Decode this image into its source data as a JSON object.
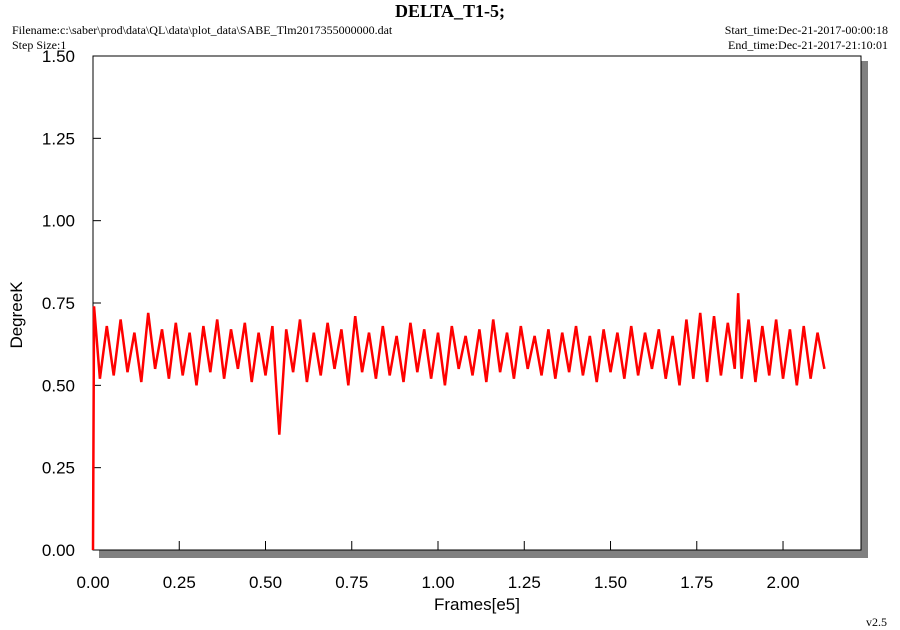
{
  "chart_data": {
    "type": "line",
    "title": "DELTA_T1-5;",
    "filename": "Filename:c:\\saber\\prod\\data\\QL\\data\\plot_data\\SABE_Tlm2017355000000.dat",
    "step_size": "Step Size:1",
    "start_time": "Start_time:Dec-21-2017-00:00:18",
    "end_time": "End_time:Dec-21-2017-21:10:01",
    "version": "v2.5",
    "x_label": "Frames[e5]",
    "y_label": "DegreeK",
    "xlim": [
      0,
      2.226
    ],
    "ylim": [
      0,
      1.5
    ],
    "xticks": [
      {
        "value": 0,
        "label": "0.00"
      },
      {
        "value": 0.25,
        "label": "0.25"
      },
      {
        "value": 0.5,
        "label": "0.50"
      },
      {
        "value": 0.75,
        "label": "0.75"
      },
      {
        "value": 1,
        "label": "1.00"
      },
      {
        "value": 1.25,
        "label": "1.25"
      },
      {
        "value": 1.5,
        "label": "1.50"
      },
      {
        "value": 1.75,
        "label": "1.75"
      },
      {
        "value": 2,
        "label": "2.00"
      }
    ],
    "yticks": [
      {
        "value": 0,
        "label": "0.00"
      },
      {
        "value": 0.25,
        "label": "0.25"
      },
      {
        "value": 0.5,
        "label": "0.50"
      },
      {
        "value": 0.75,
        "label": "0.75"
      },
      {
        "value": 1,
        "label": "1.00"
      },
      {
        "value": 1.25,
        "label": "1.25"
      },
      {
        "value": 1.5,
        "label": "1.50"
      }
    ],
    "x": [
      0,
      0.003,
      0.02,
      0.04,
      0.06,
      0.08,
      0.1,
      0.12,
      0.14,
      0.16,
      0.18,
      0.2,
      0.22,
      0.24,
      0.26,
      0.28,
      0.3,
      0.32,
      0.34,
      0.36,
      0.38,
      0.4,
      0.42,
      0.44,
      0.46,
      0.48,
      0.5,
      0.52,
      0.54,
      0.56,
      0.58,
      0.6,
      0.62,
      0.64,
      0.66,
      0.68,
      0.7,
      0.72,
      0.74,
      0.76,
      0.78,
      0.8,
      0.82,
      0.84,
      0.86,
      0.88,
      0.9,
      0.92,
      0.94,
      0.96,
      0.98,
      1.0,
      1.02,
      1.04,
      1.06,
      1.08,
      1.1,
      1.12,
      1.14,
      1.16,
      1.18,
      1.2,
      1.22,
      1.24,
      1.26,
      1.28,
      1.3,
      1.32,
      1.34,
      1.36,
      1.38,
      1.4,
      1.42,
      1.44,
      1.46,
      1.48,
      1.5,
      1.52,
      1.54,
      1.56,
      1.58,
      1.6,
      1.62,
      1.64,
      1.66,
      1.68,
      1.7,
      1.72,
      1.74,
      1.76,
      1.78,
      1.8,
      1.82,
      1.84,
      1.86,
      1.87,
      1.88,
      1.9,
      1.92,
      1.94,
      1.96,
      1.98,
      2.0,
      2.02,
      2.04,
      2.06,
      2.08,
      2.1,
      2.12
    ],
    "series": [
      {
        "color": "#ff0000",
        "values": [
          0.0,
          0.74,
          0.52,
          0.68,
          0.53,
          0.7,
          0.54,
          0.66,
          0.51,
          0.72,
          0.55,
          0.67,
          0.52,
          0.69,
          0.53,
          0.66,
          0.5,
          0.68,
          0.54,
          0.7,
          0.52,
          0.67,
          0.55,
          0.69,
          0.51,
          0.66,
          0.53,
          0.68,
          0.35,
          0.67,
          0.54,
          0.7,
          0.51,
          0.66,
          0.53,
          0.69,
          0.55,
          0.67,
          0.5,
          0.71,
          0.54,
          0.66,
          0.52,
          0.68,
          0.53,
          0.65,
          0.51,
          0.69,
          0.54,
          0.67,
          0.52,
          0.66,
          0.5,
          0.68,
          0.55,
          0.65,
          0.53,
          0.67,
          0.51,
          0.7,
          0.54,
          0.66,
          0.52,
          0.68,
          0.55,
          0.65,
          0.53,
          0.67,
          0.52,
          0.66,
          0.54,
          0.68,
          0.53,
          0.65,
          0.51,
          0.67,
          0.54,
          0.66,
          0.52,
          0.68,
          0.53,
          0.66,
          0.55,
          0.67,
          0.52,
          0.65,
          0.5,
          0.7,
          0.52,
          0.72,
          0.51,
          0.71,
          0.53,
          0.69,
          0.55,
          0.78,
          0.52,
          0.7,
          0.51,
          0.68,
          0.53,
          0.7,
          0.52,
          0.67,
          0.5,
          0.68,
          0.52,
          0.66,
          0.55
        ]
      }
    ]
  }
}
